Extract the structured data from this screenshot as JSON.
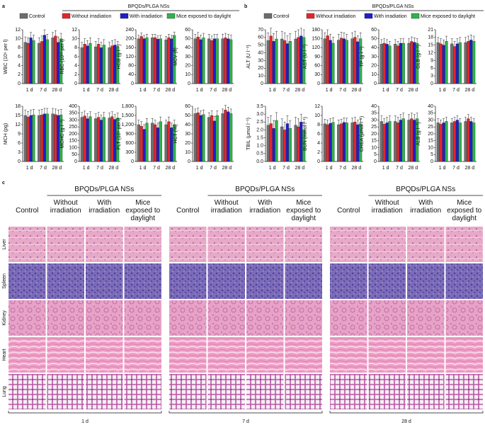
{
  "panel_labels": [
    "a",
    "b",
    "c"
  ],
  "legend": {
    "group_label": "BPQDs/PLGA NSs",
    "series": [
      {
        "name": "Control",
        "color": "#6e6e6e"
      },
      {
        "name": "Without irradiation",
        "color": "#e3262b"
      },
      {
        "name": "With irradiation",
        "color": "#1f1fc8"
      },
      {
        "name": "Mice exposed to daylight",
        "color": "#2fb34a"
      }
    ]
  },
  "chart_data": [
    {
      "type": "bar",
      "ylabel": "WBC (10⁹ per l)",
      "categories": [
        "1 d",
        "7 d",
        "28 d"
      ],
      "ylim": [
        0,
        12
      ],
      "yticks": [
        0,
        2,
        4,
        6,
        8,
        10,
        12
      ],
      "series": [
        {
          "values": [
            9.2,
            9.0,
            10.2
          ],
          "errors": [
            1.2,
            1.2,
            1.2
          ]
        },
        {
          "values": [
            9.0,
            9.4,
            10.6
          ],
          "errors": [
            1.2,
            1.2,
            1.2
          ]
        },
        {
          "values": [
            10.2,
            10.8,
            9.2
          ],
          "errors": [
            1.2,
            1.2,
            1.2
          ]
        },
        {
          "values": [
            9.6,
            9.8,
            10.0
          ],
          "errors": [
            1.2,
            1.2,
            1.2
          ]
        }
      ]
    },
    {
      "type": "bar",
      "ylabel": "RBC (10¹² per l)",
      "categories": [
        "1 d",
        "7 d",
        "28 d"
      ],
      "ylim": [
        0,
        12
      ],
      "yticks": [
        0,
        2,
        4,
        6,
        8,
        10,
        12
      ],
      "series": [
        {
          "values": [
            8.0,
            8.2,
            8.0
          ],
          "errors": [
            1.2,
            1.2,
            1.2
          ]
        },
        {
          "values": [
            8.8,
            8.8,
            8.4
          ],
          "errors": [
            1.2,
            1.2,
            1.2
          ]
        },
        {
          "values": [
            8.4,
            8.0,
            8.6
          ],
          "errors": [
            1.2,
            1.2,
            1.2
          ]
        },
        {
          "values": [
            9.0,
            8.6,
            8.2
          ],
          "errors": [
            1.2,
            1.2,
            1.2
          ]
        }
      ]
    },
    {
      "type": "bar",
      "ylabel": "HGB (g l⁻¹)",
      "categories": [
        "1 d",
        "7 d",
        "28 d"
      ],
      "ylim": [
        0,
        240
      ],
      "yticks": [
        0,
        40,
        80,
        120,
        160,
        200,
        240
      ],
      "series": [
        {
          "values": [
            200,
            205,
            195
          ],
          "errors": [
            15,
            15,
            15
          ]
        },
        {
          "values": [
            210,
            205,
            205
          ],
          "errors": [
            15,
            15,
            15
          ]
        },
        {
          "values": [
            200,
            198,
            200
          ],
          "errors": [
            15,
            15,
            15
          ]
        },
        {
          "values": [
            205,
            200,
            215
          ],
          "errors": [
            15,
            15,
            15
          ]
        }
      ]
    },
    {
      "type": "bar",
      "ylabel": "MCV (fl)",
      "categories": [
        "1 d",
        "7 d",
        "28 d"
      ],
      "ylim": [
        0,
        60
      ],
      "yticks": [
        0,
        10,
        20,
        30,
        40,
        50,
        60
      ],
      "series": [
        {
          "values": [
            50,
            50,
            50
          ],
          "errors": [
            5,
            5,
            5
          ]
        },
        {
          "values": [
            52,
            48,
            51
          ],
          "errors": [
            5,
            5,
            5
          ]
        },
        {
          "values": [
            49,
            50,
            50
          ],
          "errors": [
            5,
            5,
            5
          ]
        },
        {
          "values": [
            51,
            50,
            49
          ],
          "errors": [
            5,
            5,
            5
          ]
        }
      ]
    },
    {
      "type": "bar",
      "ylabel": "MCH (pg)",
      "categories": [
        "1 d",
        "7 d",
        "28 d"
      ],
      "ylim": [
        0,
        18
      ],
      "yticks": [
        0,
        3,
        6,
        9,
        12,
        15,
        18
      ],
      "series": [
        {
          "values": [
            15,
            15,
            15.5
          ],
          "errors": [
            1.8,
            1.8,
            1.8
          ]
        },
        {
          "values": [
            14.5,
            15.2,
            15.3
          ],
          "errors": [
            1.8,
            1.8,
            1.8
          ]
        },
        {
          "values": [
            15,
            15.5,
            15
          ],
          "errors": [
            1.8,
            1.8,
            1.8
          ]
        },
        {
          "values": [
            15.2,
            15.5,
            15.2
          ],
          "errors": [
            1.8,
            1.8,
            1.8
          ]
        }
      ]
    },
    {
      "type": "bar",
      "ylabel": "MCHC (g l⁻¹)",
      "categories": [
        "1 d",
        "7 d",
        "28 d"
      ],
      "ylim": [
        0,
        400
      ],
      "yticks": [
        0,
        50,
        100,
        150,
        200,
        250,
        300,
        350,
        400
      ],
      "series": [
        {
          "values": [
            320,
            310,
            315
          ],
          "errors": [
            35,
            35,
            35
          ]
        },
        {
          "values": [
            330,
            320,
            325
          ],
          "errors": [
            35,
            35,
            35
          ]
        },
        {
          "values": [
            310,
            300,
            305
          ],
          "errors": [
            35,
            35,
            35
          ]
        },
        {
          "values": [
            325,
            320,
            315
          ],
          "errors": [
            35,
            35,
            35
          ]
        }
      ]
    },
    {
      "type": "bar",
      "ylabel": "PLT (10⁹ per l)",
      "categories": [
        "1 d",
        "7 d",
        "28 d"
      ],
      "ylim": [
        0,
        1800
      ],
      "yticks": [
        0,
        300,
        600,
        900,
        {
          "value": 1200,
          "label": "1,200"
        },
        {
          "value": 1500,
          "label": "1,500"
        },
        {
          "value": 1800,
          "label": "1,800"
        }
      ],
      "series": [
        {
          "values": [
            1200,
            1250,
            1200
          ],
          "errors": [
            150,
            150,
            150
          ]
        },
        {
          "values": [
            1150,
            1200,
            1300
          ],
          "errors": [
            150,
            150,
            150
          ]
        },
        {
          "values": [
            1050,
            1100,
            1100
          ],
          "errors": [
            150,
            150,
            150
          ]
        },
        {
          "values": [
            1250,
            1300,
            1200
          ],
          "errors": [
            150,
            150,
            150
          ]
        }
      ]
    },
    {
      "type": "bar",
      "ylabel": "HCT (%)",
      "categories": [
        "1 d",
        "7 d",
        "28 d"
      ],
      "ylim": [
        0,
        60
      ],
      "yticks": [
        0,
        10,
        20,
        30,
        40,
        50,
        60
      ],
      "series": [
        {
          "values": [
            52,
            48,
            52
          ],
          "errors": [
            5,
            5,
            5
          ]
        },
        {
          "values": [
            53,
            50,
            56
          ],
          "errors": [
            5,
            5,
            5
          ]
        },
        {
          "values": [
            50,
            44,
            54
          ],
          "errors": [
            5,
            5,
            5
          ]
        },
        {
          "values": [
            51,
            50,
            52
          ],
          "errors": [
            5,
            5,
            5
          ]
        }
      ]
    },
    {
      "type": "bar",
      "ylabel": "ALT (U l⁻¹)",
      "categories": [
        "1 d",
        "7 d",
        "28 d"
      ],
      "ylim": [
        0,
        70
      ],
      "yticks": [
        0,
        10,
        20,
        30,
        40,
        50,
        60,
        70
      ],
      "series": [
        {
          "values": [
            56,
            58,
            58
          ],
          "errors": [
            10,
            10,
            10
          ]
        },
        {
          "values": [
            62,
            56,
            60
          ],
          "errors": [
            10,
            10,
            10
          ]
        },
        {
          "values": [
            55,
            52,
            62
          ],
          "errors": [
            10,
            10,
            10
          ]
        },
        {
          "values": [
            58,
            55,
            60
          ],
          "errors": [
            10,
            10,
            10
          ]
        }
      ]
    },
    {
      "type": "bar",
      "ylabel": "AST (U l⁻¹)",
      "categories": [
        "1 d",
        "7 d",
        "28 d"
      ],
      "ylim": [
        0,
        180
      ],
      "yticks": [
        0,
        30,
        60,
        90,
        120,
        150,
        180
      ],
      "series": [
        {
          "values": [
            150,
            145,
            150
          ],
          "errors": [
            20,
            20,
            20
          ]
        },
        {
          "values": [
            160,
            152,
            155
          ],
          "errors": [
            20,
            20,
            20
          ]
        },
        {
          "values": [
            145,
            150,
            140
          ],
          "errors": [
            20,
            20,
            20
          ]
        },
        {
          "values": [
            135,
            145,
            150
          ],
          "errors": [
            20,
            20,
            20
          ]
        }
      ]
    },
    {
      "type": "bar",
      "ylabel": "TP (g l⁻¹)",
      "categories": [
        "1 d",
        "7 d",
        "28 d"
      ],
      "ylim": [
        0,
        60
      ],
      "yticks": [
        0,
        10,
        20,
        30,
        40,
        50,
        60
      ],
      "series": [
        {
          "values": [
            44,
            44,
            45
          ],
          "errors": [
            5,
            5,
            5
          ]
        },
        {
          "values": [
            45,
            42,
            47
          ],
          "errors": [
            5,
            5,
            5
          ]
        },
        {
          "values": [
            44,
            45,
            46
          ],
          "errors": [
            5,
            5,
            5
          ]
        },
        {
          "values": [
            42,
            45,
            45
          ],
          "errors": [
            5,
            5,
            5
          ]
        }
      ]
    },
    {
      "type": "bar",
      "ylabel": "GLB (g l⁻¹)",
      "categories": [
        "1 d",
        "7 d",
        "28 d"
      ],
      "ylim": [
        0,
        21
      ],
      "yticks": [
        0,
        3,
        6,
        9,
        12,
        15,
        18,
        21
      ],
      "series": [
        {
          "values": [
            16,
            15.5,
            16
          ],
          "errors": [
            2,
            2,
            2
          ]
        },
        {
          "values": [
            15.5,
            14.5,
            16.5
          ],
          "errors": [
            2,
            2,
            2
          ]
        },
        {
          "values": [
            15,
            15.5,
            17
          ],
          "errors": [
            2,
            2,
            2
          ]
        },
        {
          "values": [
            16.5,
            16,
            16.5
          ],
          "errors": [
            2,
            2,
            2
          ]
        }
      ]
    },
    {
      "type": "bar",
      "ylabel": "TBIL (μmol l⁻¹)",
      "categories": [
        "1 d",
        "7 d",
        "28 d"
      ],
      "ylim": [
        0,
        3.5
      ],
      "yticks": [
        {
          "value": 0,
          "label": "0.0"
        },
        0.5,
        {
          "value": 1,
          "label": "1.0"
        },
        1.5,
        {
          "value": 2,
          "label": "2.0"
        },
        2.5,
        {
          "value": 3,
          "label": "3.0"
        },
        3.5
      ],
      "series": [
        {
          "values": [
            2.3,
            2.2,
            2.3
          ],
          "errors": [
            0.5,
            0.5,
            0.5
          ]
        },
        {
          "values": [
            2.4,
            2.0,
            2.2
          ],
          "errors": [
            0.5,
            0.5,
            0.5
          ]
        },
        {
          "values": [
            2.1,
            2.4,
            2.5
          ],
          "errors": [
            0.5,
            0.5,
            0.5
          ]
        },
        {
          "values": [
            2.6,
            2.1,
            2.0
          ],
          "errors": [
            0.5,
            0.5,
            0.5
          ]
        }
      ]
    },
    {
      "type": "bar",
      "ylabel": "BUN (mmol l⁻¹)",
      "categories": [
        "1 d",
        "7 d",
        "28 d"
      ],
      "ylim": [
        0,
        12
      ],
      "yticks": [
        0,
        2,
        4,
        6,
        8,
        10,
        12
      ],
      "series": [
        {
          "values": [
            8.2,
            8.0,
            8.4
          ],
          "errors": [
            1,
            1,
            1
          ]
        },
        {
          "values": [
            8.0,
            8.2,
            8.6
          ],
          "errors": [
            1,
            1,
            1
          ]
        },
        {
          "values": [
            8.3,
            8.5,
            8.0
          ],
          "errors": [
            1,
            1,
            1
          ]
        },
        {
          "values": [
            8.5,
            8.4,
            8.2
          ],
          "errors": [
            1,
            1,
            1
          ]
        }
      ]
    },
    {
      "type": "bar",
      "ylabel": "CREA (μmol l⁻¹)",
      "categories": [
        "1 d",
        "7 d",
        "28 d"
      ],
      "ylim": [
        0,
        40
      ],
      "yticks": [
        0,
        5,
        10,
        15,
        20,
        25,
        30,
        35,
        40
      ],
      "series": [
        {
          "values": [
            29,
            29,
            30
          ],
          "errors": [
            4,
            4,
            4
          ]
        },
        {
          "values": [
            27,
            28,
            31
          ],
          "errors": [
            4,
            4,
            4
          ]
        },
        {
          "values": [
            28,
            30,
            30
          ],
          "errors": [
            4,
            4,
            4
          ]
        },
        {
          "values": [
            29,
            31,
            31
          ],
          "errors": [
            4,
            4,
            4
          ]
        }
      ]
    },
    {
      "type": "bar",
      "ylabel": "ALB (g l⁻¹)",
      "categories": [
        "1 d",
        "7 d",
        "28 d"
      ],
      "ylim": [
        0,
        40
      ],
      "yticks": [
        0,
        5,
        10,
        15,
        20,
        25,
        30,
        35,
        40
      ],
      "series": [
        {
          "values": [
            28,
            28,
            29
          ],
          "errors": [
            3,
            3,
            3
          ]
        },
        {
          "values": [
            27,
            29,
            31
          ],
          "errors": [
            3,
            3,
            3
          ]
        },
        {
          "values": [
            28,
            30,
            29
          ],
          "errors": [
            3,
            3,
            3
          ]
        },
        {
          "values": [
            29,
            28,
            28
          ],
          "errors": [
            3,
            3,
            3
          ]
        }
      ]
    }
  ],
  "histology": {
    "group_label": "BPQDs/PLGA NSs",
    "columns": [
      "Control",
      "Without irradiation",
      "With irradiation",
      "Mice exposed to daylight"
    ],
    "tissues": [
      "Liver",
      "Spleen",
      "Kidney",
      "Heart",
      "Lung"
    ],
    "timepoints": [
      "1 d",
      "7 d",
      "28 d"
    ]
  }
}
